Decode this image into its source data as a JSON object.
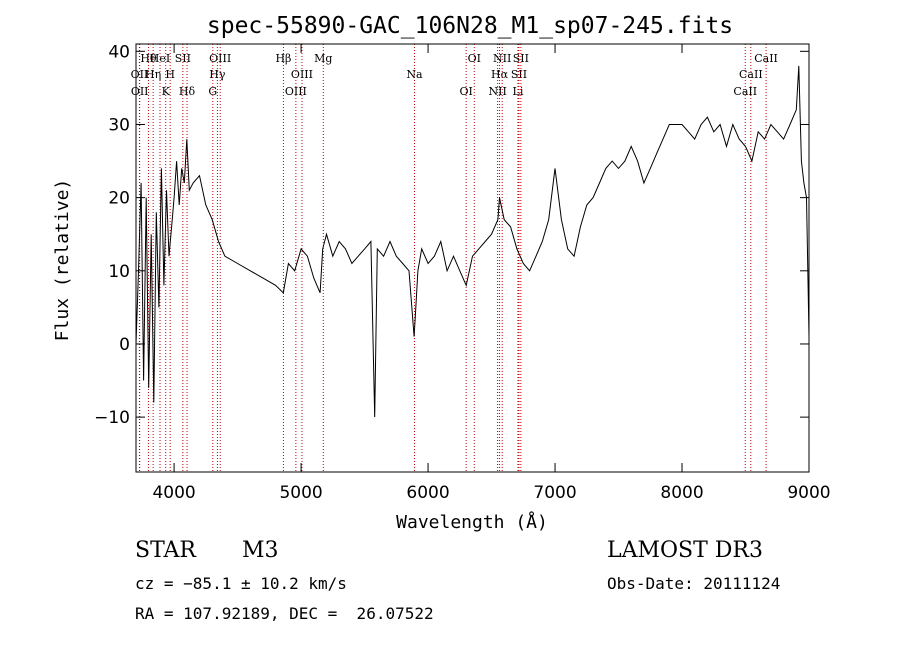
{
  "chart_data": {
    "type": "line",
    "title": "spec-55890-GAC_106N28_M1_sp07-245.fits",
    "xlabel": "Wavelength (Å)",
    "ylabel": "Flux (relative)",
    "xlim": [
      3700,
      9000
    ],
    "ylim": [
      -17.5,
      41
    ],
    "xticks": [
      4000,
      5000,
      6000,
      7000,
      8000,
      9000
    ],
    "yticks": [
      -10,
      0,
      10,
      20,
      30,
      40
    ],
    "grid": false,
    "series": [
      {
        "name": "flux",
        "x": [
          3700,
          3720,
          3740,
          3760,
          3780,
          3800,
          3820,
          3840,
          3860,
          3880,
          3900,
          3920,
          3940,
          3960,
          3980,
          4000,
          4020,
          4040,
          4060,
          4080,
          4100,
          4120,
          4150,
          4200,
          4250,
          4300,
          4350,
          4400,
          4500,
          4600,
          4700,
          4800,
          4860,
          4900,
          4950,
          5000,
          5050,
          5100,
          5150,
          5170,
          5200,
          5250,
          5300,
          5350,
          5400,
          5450,
          5500,
          5550,
          5580,
          5600,
          5650,
          5700,
          5750,
          5800,
          5850,
          5890,
          5900,
          5920,
          5950,
          6000,
          6050,
          6100,
          6150,
          6200,
          6250,
          6300,
          6350,
          6400,
          6450,
          6500,
          6550,
          6563,
          6600,
          6650,
          6700,
          6750,
          6800,
          6850,
          6900,
          6950,
          7000,
          7050,
          7100,
          7150,
          7200,
          7250,
          7300,
          7350,
          7400,
          7450,
          7500,
          7550,
          7600,
          7650,
          7700,
          7750,
          7800,
          7850,
          7900,
          7950,
          8000,
          8050,
          8100,
          8150,
          8200,
          8250,
          8300,
          8350,
          8400,
          8450,
          8500,
          8550,
          8600,
          8650,
          8700,
          8750,
          8800,
          8850,
          8900,
          8920,
          8940,
          8960,
          8980,
          9000
        ],
        "y": [
          0,
          10,
          22,
          -5,
          20,
          -6,
          15,
          -8,
          18,
          5,
          24,
          8,
          21,
          12,
          16,
          20,
          25,
          19,
          24,
          22,
          28,
          21,
          22,
          23,
          19,
          17,
          14,
          12,
          11,
          10,
          9,
          8,
          7,
          11,
          10,
          13,
          12,
          9,
          7,
          13,
          15,
          12,
          14,
          13,
          11,
          12,
          13,
          14,
          -10,
          13,
          12,
          14,
          12,
          11,
          10,
          1,
          4,
          10,
          13,
          11,
          12,
          14,
          10,
          12,
          10,
          8,
          12,
          13,
          14,
          15,
          17,
          20,
          17,
          16,
          13,
          11,
          10,
          12,
          14,
          17,
          24,
          17,
          13,
          12,
          16,
          19,
          20,
          22,
          24,
          25,
          24,
          25,
          27,
          25,
          22,
          24,
          26,
          28,
          30,
          30,
          30,
          29,
          28,
          30,
          31,
          29,
          30,
          27,
          30,
          28,
          27,
          25,
          29,
          28,
          30,
          29,
          28,
          30,
          32,
          38,
          25,
          22,
          20,
          1
        ]
      }
    ],
    "line_markers": [
      {
        "label": "Hθ",
        "wavelength": 3798
      },
      {
        "label": "OII",
        "wavelength": 3727
      },
      {
        "label": "OII",
        "wavelength": 3729
      },
      {
        "label": "HeI",
        "wavelength": 3889
      },
      {
        "label": "Hη",
        "wavelength": 3835
      },
      {
        "label": "K",
        "wavelength": 3934
      },
      {
        "label": "SII",
        "wavelength": 4069
      },
      {
        "label": "H",
        "wavelength": 3969
      },
      {
        "label": "Hδ",
        "wavelength": 4102
      },
      {
        "label": "OIII",
        "wavelength": 4363
      },
      {
        "label": "Hγ",
        "wavelength": 4341
      },
      {
        "label": "G",
        "wavelength": 4305
      },
      {
        "label": "Hβ",
        "wavelength": 4861
      },
      {
        "label": "OIII",
        "wavelength": 5007
      },
      {
        "label": "OIII",
        "wavelength": 4959
      },
      {
        "label": "Mg",
        "wavelength": 5175
      },
      {
        "label": "Na",
        "wavelength": 5893
      },
      {
        "label": "OI",
        "wavelength": 6300
      },
      {
        "label": "OI",
        "wavelength": 6364
      },
      {
        "label": "Hα",
        "wavelength": 6563
      },
      {
        "label": "NII",
        "wavelength": 6548
      },
      {
        "label": "NII",
        "wavelength": 6584
      },
      {
        "label": "SII",
        "wavelength": 6716
      },
      {
        "label": "Li",
        "wavelength": 6708
      },
      {
        "label": "SII",
        "wavelength": 6731
      },
      {
        "label": "CaII",
        "wavelength": 8542
      },
      {
        "label": "CaII",
        "wavelength": 8498
      },
      {
        "label": "CaII",
        "wavelength": 8662
      }
    ]
  },
  "info": {
    "object_class": "STAR",
    "subclass": "M3",
    "cz": "cz = −85.1 ± 10.2 km/s",
    "coords": "RA = 107.92189, DEC =  26.07522",
    "survey": "LAMOST DR3",
    "obs_date": "Obs-Date: 20111124"
  },
  "colors": {
    "line": "#000000",
    "marker": "#c00000",
    "axes": "#000000"
  }
}
